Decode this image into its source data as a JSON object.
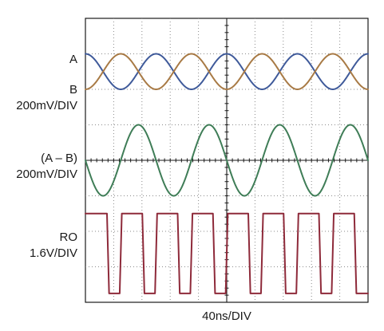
{
  "chart_data": {
    "type": "line",
    "xlabel": "40ns/DIV",
    "x_unit": "ns",
    "x_range": [
      0,
      400
    ],
    "grid": true,
    "divisions": {
      "horizontal": 10,
      "vertical": 8
    },
    "channel_labels": [
      {
        "text": "A",
        "key": "A"
      },
      {
        "text": "B",
        "key": "B"
      },
      {
        "text": "200mV/DIV",
        "key": "AB_scale"
      },
      {
        "text": "(A – B)",
        "key": "diff"
      },
      {
        "text": "200mV/DIV",
        "key": "diff_scale"
      },
      {
        "text": "RO",
        "key": "RO"
      },
      {
        "text": "1.6V/DIV",
        "key": "RO_scale"
      }
    ],
    "series": [
      {
        "name": "A",
        "color": "#3f5a9a",
        "shape": "sine",
        "period_ns": 100,
        "phase_deg": 90,
        "center_div": 6.5,
        "amplitude_div": 0.5
      },
      {
        "name": "B",
        "color": "#a87a45",
        "shape": "sine",
        "period_ns": 100,
        "phase_deg": -90,
        "center_div": 6.5,
        "amplitude_div": 0.5
      },
      {
        "name": "(A – B)",
        "color": "#3f7d57",
        "shape": "sine",
        "period_ns": 100,
        "phase_deg": 180,
        "center_div": 4.0,
        "amplitude_div": 1.0
      },
      {
        "name": "RO",
        "color": "#8e2a3a",
        "shape": "square",
        "period_ns": 100,
        "rise_ns": 3,
        "edges_ns": [
          0,
          32,
          50,
          82,
          100,
          132,
          150,
          182,
          200,
          232,
          250,
          282,
          300,
          332,
          350,
          382,
          400
        ],
        "high_div": 2.5,
        "low_div": 0.25
      }
    ]
  }
}
